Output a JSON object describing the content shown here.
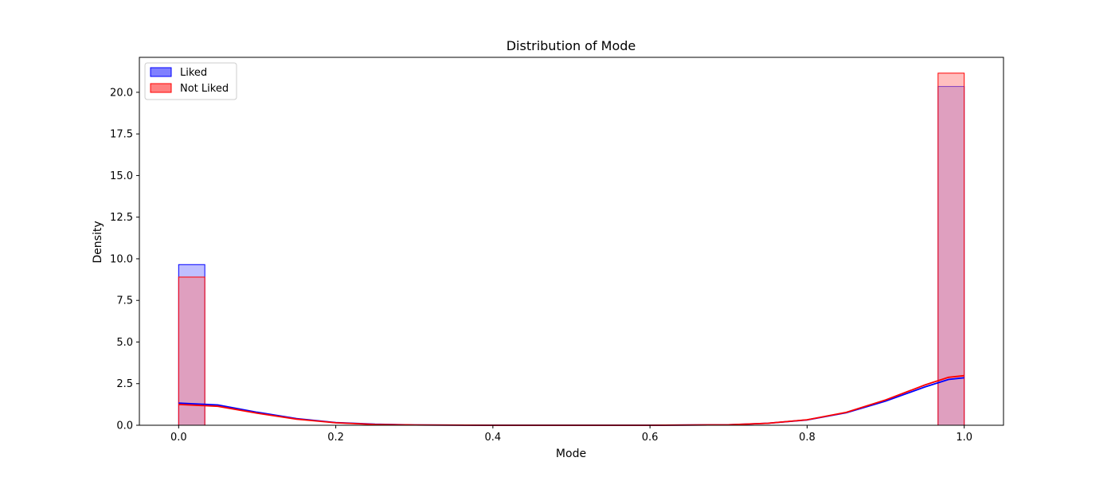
{
  "chart_data": {
    "type": "histogram",
    "title": "Distribution of Mode",
    "xlabel": "Mode",
    "ylabel": "Density",
    "xlim": [
      -0.05,
      1.05
    ],
    "ylim": [
      0,
      22.1
    ],
    "x_ticks": [
      "0.0",
      "0.2",
      "0.4",
      "0.6",
      "0.8",
      "1.0"
    ],
    "x_tick_values": [
      0.0,
      0.2,
      0.4,
      0.6,
      0.8,
      1.0
    ],
    "y_ticks": [
      "0.0",
      "2.5",
      "5.0",
      "7.5",
      "10.0",
      "12.5",
      "15.0",
      "17.5",
      "20.0"
    ],
    "y_tick_values": [
      0.0,
      2.5,
      5.0,
      7.5,
      10.0,
      12.5,
      15.0,
      17.5,
      20.0
    ],
    "bin_width": 0.0333,
    "grid": false,
    "legend_position": "upper-left",
    "series": [
      {
        "name": "Liked",
        "color": "#0000ff",
        "fill": "#8080ff",
        "bins": [
          {
            "x0": 0.0,
            "x1": 0.0333,
            "density": 9.65
          },
          {
            "x0": 0.9667,
            "x1": 1.0,
            "density": 20.35
          }
        ],
        "kde": [
          [
            0.0,
            1.33
          ],
          [
            0.05,
            1.22
          ],
          [
            0.1,
            0.78
          ],
          [
            0.15,
            0.4
          ],
          [
            0.2,
            0.16
          ],
          [
            0.25,
            0.06
          ],
          [
            0.3,
            0.02
          ],
          [
            0.4,
            0.0
          ],
          [
            0.6,
            0.0
          ],
          [
            0.7,
            0.03
          ],
          [
            0.75,
            0.12
          ],
          [
            0.8,
            0.32
          ],
          [
            0.85,
            0.75
          ],
          [
            0.9,
            1.45
          ],
          [
            0.95,
            2.3
          ],
          [
            0.98,
            2.75
          ],
          [
            1.0,
            2.85
          ]
        ]
      },
      {
        "name": "Not Liked",
        "color": "#ff0000",
        "fill": "#ff8080",
        "bins": [
          {
            "x0": 0.0,
            "x1": 0.0333,
            "density": 8.9
          },
          {
            "x0": 0.9667,
            "x1": 1.0,
            "density": 21.15
          }
        ],
        "kde": [
          [
            0.0,
            1.25
          ],
          [
            0.05,
            1.14
          ],
          [
            0.1,
            0.72
          ],
          [
            0.15,
            0.37
          ],
          [
            0.2,
            0.15
          ],
          [
            0.25,
            0.05
          ],
          [
            0.3,
            0.02
          ],
          [
            0.4,
            0.0
          ],
          [
            0.6,
            0.0
          ],
          [
            0.7,
            0.03
          ],
          [
            0.75,
            0.12
          ],
          [
            0.8,
            0.33
          ],
          [
            0.85,
            0.78
          ],
          [
            0.9,
            1.52
          ],
          [
            0.95,
            2.42
          ],
          [
            0.98,
            2.88
          ],
          [
            1.0,
            2.98
          ]
        ]
      }
    ]
  }
}
